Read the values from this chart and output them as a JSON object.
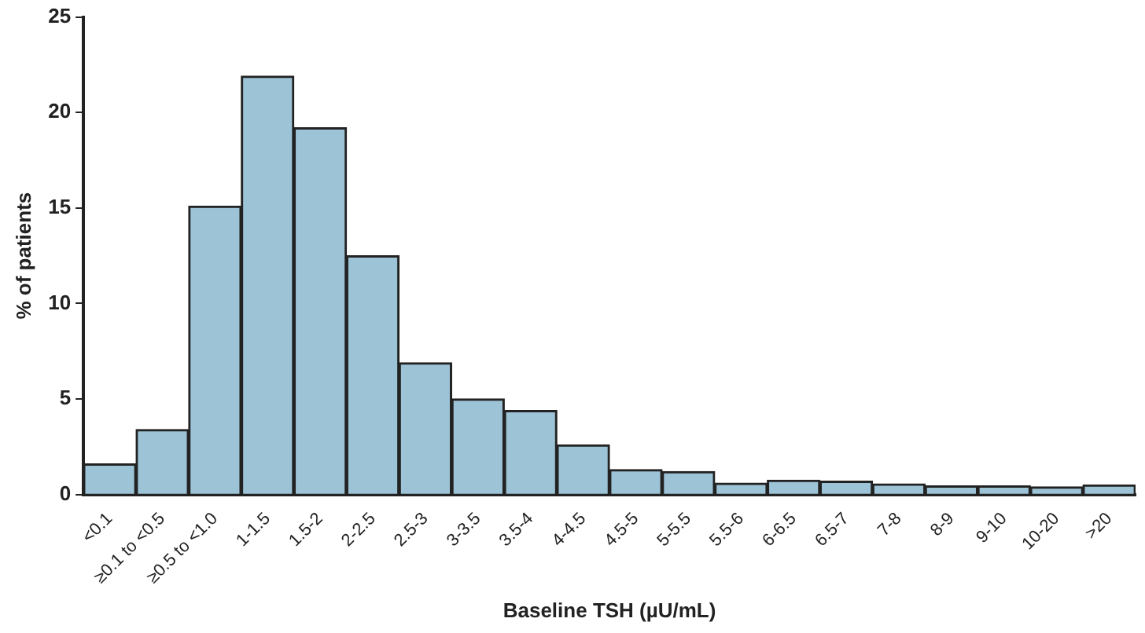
{
  "chart_data": {
    "type": "bar",
    "xlabel": "Baseline TSH (µU/mL)",
    "ylabel": "% of patients",
    "categories": [
      "<0.1",
      "≥0.1 to <0.5",
      "≥0.5 to <1.0",
      "1-1.5",
      "1.5-2",
      "2-2.5",
      "2.5-3",
      "3-3.5",
      "3.5-4",
      "4-4.5",
      "4.5-5",
      "5-5.5",
      "5.5-6",
      "6-6.5",
      "6.5-7",
      "7-8",
      "8-9",
      "9-10",
      "10-20",
      ">20"
    ],
    "values": [
      1.6,
      3.4,
      15.1,
      21.9,
      19.2,
      12.5,
      6.9,
      5.0,
      4.4,
      2.6,
      1.3,
      1.2,
      0.6,
      0.75,
      0.7,
      0.55,
      0.45,
      0.45,
      0.4,
      0.5
    ],
    "color": "#9dc3d6",
    "ylim": [
      0,
      25
    ],
    "yticks": [
      0,
      5,
      10,
      15,
      20,
      25
    ],
    "grid": false,
    "legend": false
  }
}
